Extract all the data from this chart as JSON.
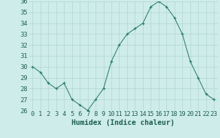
{
  "x": [
    0,
    1,
    2,
    3,
    4,
    5,
    6,
    7,
    8,
    9,
    10,
    11,
    12,
    13,
    14,
    15,
    16,
    17,
    18,
    19,
    20,
    21,
    22,
    23
  ],
  "y": [
    30,
    29.5,
    28.5,
    28,
    28.5,
    27,
    26.5,
    26,
    27,
    28,
    30.5,
    32,
    33,
    33.5,
    34,
    35.5,
    36,
    35.5,
    34.5,
    33,
    30.5,
    29,
    27.5,
    27
  ],
  "line_color": "#2d7d6e",
  "marker": "+",
  "marker_color": "#2d7d6e",
  "bg_color": "#ceecea",
  "grid_color": "#b0d4d0",
  "axis_label_color": "#1a5c52",
  "tick_color": "#1a5c52",
  "xlabel": "Humidex (Indice chaleur)",
  "ylim": [
    26,
    36
  ],
  "xlim": [
    -0.5,
    23.5
  ],
  "yticks": [
    26,
    27,
    28,
    29,
    30,
    31,
    32,
    33,
    34,
    35,
    36
  ],
  "xticks": [
    0,
    1,
    2,
    3,
    4,
    5,
    6,
    7,
    8,
    9,
    10,
    11,
    12,
    13,
    14,
    15,
    16,
    17,
    18,
    19,
    20,
    21,
    22,
    23
  ],
  "tick_fontsize": 6.5,
  "label_fontsize": 7.5
}
